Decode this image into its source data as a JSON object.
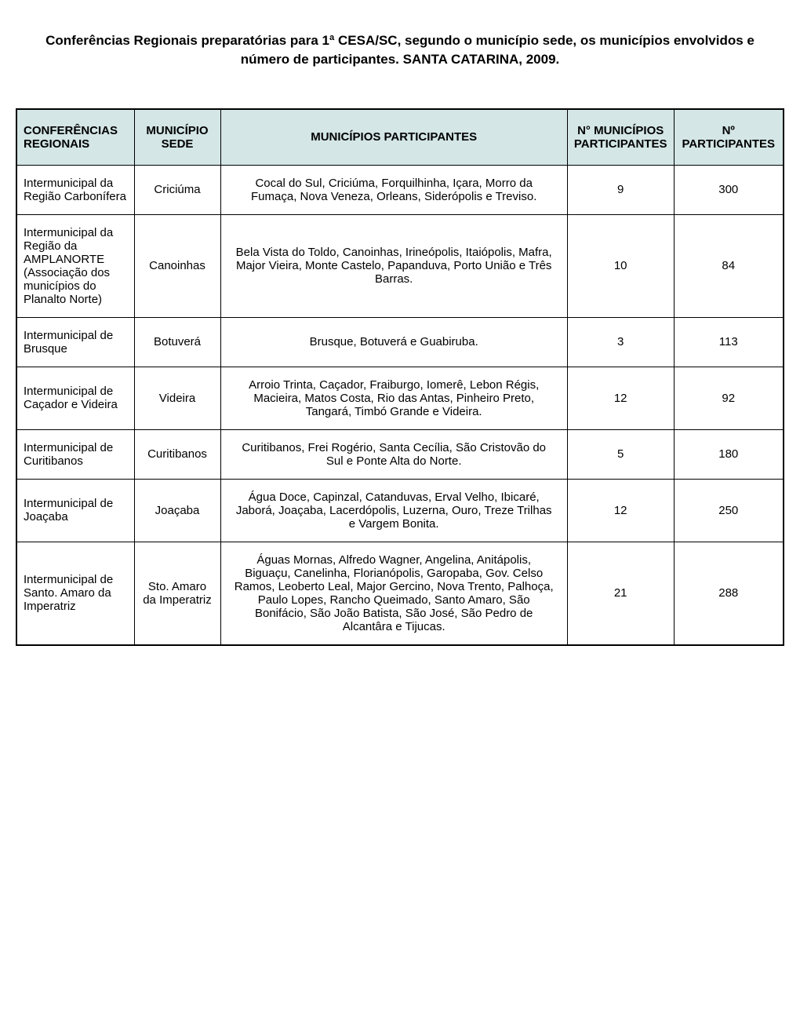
{
  "title": "Conferências Regionais preparatórias para 1ª CESA/SC, segundo o município sede, os municípios envolvidos e número de participantes. SANTA CATARINA, 2009.",
  "columns": {
    "conferencias": "CONFERÊNCIAS REGIONAIS",
    "sede": "MUNICÍPIO SEDE",
    "participantes": "MUNICÍPIOS PARTICIPANTES",
    "n_municipios": "N° MUNICÍPIOS PARTICIPANTES",
    "n_participantes": "Nº PARTICIPANTES"
  },
  "rows": [
    {
      "conferencia": "Intermunicipal da Região Carbonífera",
      "sede": "Criciúma",
      "municipios": "Cocal do Sul, Criciúma, Forquilhinha, Içara, Morro da Fumaça, Nova Veneza, Orleans, Siderópolis e Treviso.",
      "n_municipios": "9",
      "n_participantes": "300"
    },
    {
      "conferencia": "Intermunicipal da Região da AMPLANORTE (Associação dos municípios do Planalto Norte)",
      "sede": "Canoinhas",
      "municipios": "Bela Vista do Toldo, Canoinhas, Irineópolis, Itaiópolis, Mafra, Major Vieira, Monte Castelo, Papanduva, Porto União e Três Barras.",
      "n_municipios": "10",
      "n_participantes": "84"
    },
    {
      "conferencia": "Intermunicipal de Brusque",
      "sede": "Botuverá",
      "municipios": "Brusque, Botuverá e Guabiruba.",
      "n_municipios": "3",
      "n_participantes": "113"
    },
    {
      "conferencia": "Intermunicipal de Caçador e Videira",
      "sede": "Videira",
      "municipios": "Arroio Trinta, Caçador, Fraiburgo, Iomerê, Lebon Régis, Macieira, Matos Costa, Rio das Antas, Pinheiro Preto, Tangará, Timbó Grande e Videira.",
      "n_municipios": "12",
      "n_participantes": "92"
    },
    {
      "conferencia": "Intermunicipal de Curitibanos",
      "sede": "Curitibanos",
      "municipios": "Curitibanos, Frei Rogério, Santa Cecília, São Cristovão do Sul e Ponte Alta do Norte.",
      "n_municipios": "5",
      "n_participantes": "180"
    },
    {
      "conferencia": "Intermunicipal de Joaçaba",
      "sede": "Joaçaba",
      "municipios": "Água Doce, Capinzal, Catanduvas, Erval Velho, Ibicaré, Jaborá, Joaçaba, Lacerdópolis, Luzerna, Ouro, Treze Trilhas e Vargem Bonita.",
      "n_municipios": "12",
      "n_participantes": "250"
    },
    {
      "conferencia": "Intermunicipal de Santo. Amaro da Imperatriz",
      "sede": "Sto. Amaro da Imperatriz",
      "municipios": "Águas Mornas, Alfredo Wagner, Angelina, Anitápolis, Biguaçu, Canelinha, Florianópolis, Garopaba, Gov. Celso Ramos, Leoberto Leal, Major Gercino, Nova Trento, Palhoça, Paulo Lopes, Rancho Queimado, Santo Amaro, São Bonifácio, São João Batista, São José, São Pedro de Alcantâra e Tijucas.",
      "n_municipios": "21",
      "n_participantes": "288"
    }
  ],
  "style": {
    "header_bg": "#d4e6e6",
    "border_color": "#000000",
    "font_family": "Arial",
    "title_fontsize": 17,
    "header_fontsize": 15,
    "cell_fontsize": 15
  }
}
